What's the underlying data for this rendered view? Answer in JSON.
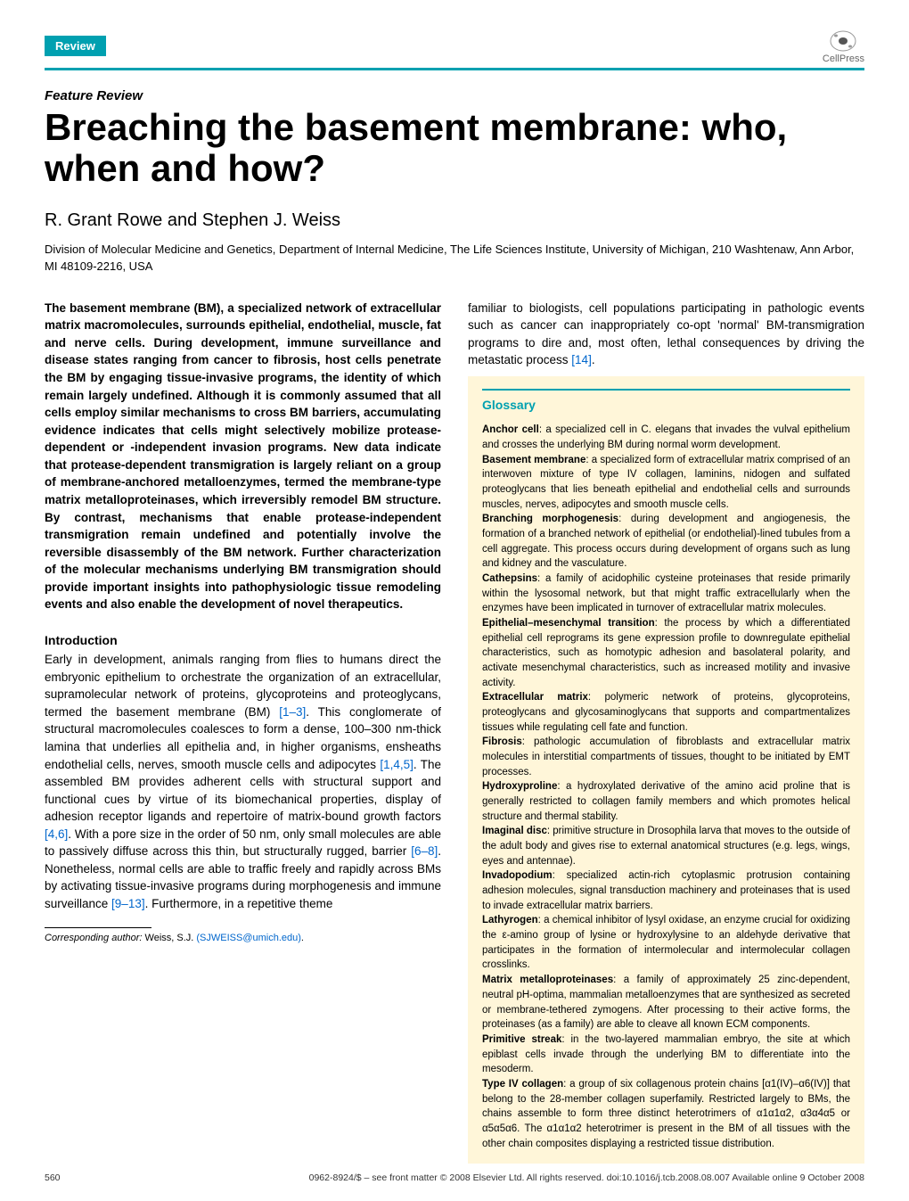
{
  "banner": {
    "badge": "Review",
    "logo_label": "CellPress"
  },
  "header": {
    "feature_label": "Feature Review",
    "title": "Breaching the basement membrane: who, when and how?",
    "authors": "R. Grant Rowe and Stephen J. Weiss",
    "affiliation": "Division of Molecular Medicine and Genetics, Department of Internal Medicine, The Life Sciences Institute, University of Michigan, 210 Washtenaw, Ann Arbor, MI 48109-2216, USA"
  },
  "abstract": "The basement membrane (BM), a specialized network of extracellular matrix macromolecules, surrounds epithelial, endothelial, muscle, fat and nerve cells. During development, immune surveillance and disease states ranging from cancer to fibrosis, host cells penetrate the BM by engaging tissue-invasive programs, the identity of which remain largely undefined. Although it is commonly assumed that all cells employ similar mechanisms to cross BM barriers, accumulating evidence indicates that cells might selectively mobilize protease-dependent or -independent invasion programs. New data indicate that protease-dependent transmigration is largely reliant on a group of membrane-anchored metalloenzymes, termed the membrane-type matrix metalloproteinases, which irreversibly remodel BM structure. By contrast, mechanisms that enable protease-independent transmigration remain undefined and potentially involve the reversible disassembly of the BM network. Further characterization of the molecular mechanisms underlying BM transmigration should provide important insights into pathophysiologic tissue remodeling events and also enable the development of novel therapeutics.",
  "intro": {
    "heading": "Introduction",
    "p1a": "Early in development, animals ranging from flies to humans direct the embryonic epithelium to orchestrate the organization of an extracellular, supramolecular network of proteins, glycoproteins and proteoglycans, termed the basement membrane (BM) ",
    "ref1": "[1–3]",
    "p1b": ". This conglomerate of structural macromolecules coalesces to form a dense, 100–300 nm-thick lamina that underlies all epithelia and, in higher organisms, ensheaths endothelial cells, nerves, smooth muscle cells and adipocytes ",
    "ref2": "[1,4,5]",
    "p1c": ". The assembled BM provides adherent cells with structural support and functional cues by virtue of its biomechanical properties, display of adhesion receptor ligands and repertoire of matrix-bound growth factors ",
    "ref3": "[4,6]",
    "p1d": ". With a pore size in the order of 50 nm, only small molecules are able to passively diffuse across this thin, but structurally rugged, barrier ",
    "ref4": "[6–8]",
    "p1e": ". Nonetheless, normal cells are able to traffic freely and rapidly across BMs by activating tissue-invasive programs during morphogenesis and immune surveillance ",
    "ref5": "[9–13]",
    "p1f": ". Furthermore, in a repetitive theme"
  },
  "col2_top": {
    "p1a": "familiar to biologists, cell populations participating in pathologic events such as cancer can inappropriately co-opt 'normal' BM-transmigration programs to dire and, most often, lethal consequences by driving the metastatic process ",
    "ref1": "[14]",
    "p1b": "."
  },
  "glossary": {
    "title": "Glossary",
    "items": [
      {
        "term": "Anchor cell",
        "def": ": a specialized cell in C. elegans that invades the vulval epithelium and crosses the underlying BM during normal worm development."
      },
      {
        "term": "Basement membrane",
        "def": ": a specialized form of extracellular matrix comprised of an interwoven mixture of type IV collagen, laminins, nidogen and sulfated proteoglycans that lies beneath epithelial and endothelial cells and surrounds muscles, nerves, adipocytes and smooth muscle cells."
      },
      {
        "term": "Branching morphogenesis",
        "def": ": during development and angiogenesis, the formation of a branched network of epithelial (or endothelial)-lined tubules from a cell aggregate. This process occurs during development of organs such as lung and kidney and the vasculature."
      },
      {
        "term": "Cathepsins",
        "def": ": a family of acidophilic cysteine proteinases that reside primarily within the lysosomal network, but that might traffic extracellularly when the enzymes have been implicated in turnover of extracellular matrix molecules."
      },
      {
        "term": "Epithelial–mesenchymal transition",
        "def": ": the process by which a differentiated epithelial cell reprograms its gene expression profile to downregulate epithelial characteristics, such as homotypic adhesion and basolateral polarity, and activate mesenchymal characteristics, such as increased motility and invasive activity."
      },
      {
        "term": "Extracellular matrix",
        "def": ": polymeric network of proteins, glycoproteins, proteoglycans and glycosaminoglycans that supports and compartmentalizes tissues while regulating cell fate and function."
      },
      {
        "term": "Fibrosis",
        "def": ": pathologic accumulation of fibroblasts and extracellular matrix molecules in interstitial compartments of tissues, thought to be initiated by EMT processes."
      },
      {
        "term": "Hydroxyproline",
        "def": ": a hydroxylated derivative of the amino acid proline that is generally restricted to collagen family members and which promotes helical structure and thermal stability."
      },
      {
        "term": "Imaginal disc",
        "def": ": primitive structure in Drosophila larva that moves to the outside of the adult body and gives rise to external anatomical structures (e.g. legs, wings, eyes and antennae)."
      },
      {
        "term": "Invadopodium",
        "def": ": specialized actin-rich cytoplasmic protrusion containing adhesion molecules, signal transduction machinery and proteinases that is used to invade extracellular matrix barriers."
      },
      {
        "term": "Lathyrogen",
        "def": ": a chemical inhibitor of lysyl oxidase, an enzyme crucial for oxidizing the ε-amino group of lysine or hydroxylysine to an aldehyde derivative that participates in the formation of intermolecular and intermolecular collagen crosslinks."
      },
      {
        "term": "Matrix metalloproteinases",
        "def": ": a family of approximately 25 zinc-dependent, neutral pH-optima, mammalian metalloenzymes that are synthesized as secreted or membrane-tethered zymogens. After processing to their active forms, the proteinases (as a family) are able to cleave all known ECM components."
      },
      {
        "term": "Primitive streak",
        "def": ": in the two-layered mammalian embryo, the site at which epiblast cells invade through the underlying BM to differentiate into the mesoderm."
      },
      {
        "term": "Type IV collagen",
        "def": ": a group of six collagenous protein chains [α1(IV)–α6(IV)] that belong to the 28-member collagen superfamily. Restricted largely to BMs, the chains assemble to form three distinct heterotrimers of α1α1α2, α3α4α5 or α5α5α6. The α1α1α2 heterotrimer is present in the BM of all tissues with the other chain composites displaying a restricted tissue distribution."
      }
    ]
  },
  "footnote": {
    "label": "Corresponding author:",
    "name": " Weiss, S.J. ",
    "email": "(SJWEISS@umich.edu)",
    "period": "."
  },
  "footer": {
    "page_num": "560",
    "rights": "0962-8924/$ – see front matter © 2008 Elsevier Ltd. All rights reserved. doi:10.1016/j.tcb.2008.08.007  Available online 9 October 2008"
  },
  "colors": {
    "teal": "#00a0b0",
    "glossary_bg": "#fff6d9",
    "link": "#0066cc"
  }
}
